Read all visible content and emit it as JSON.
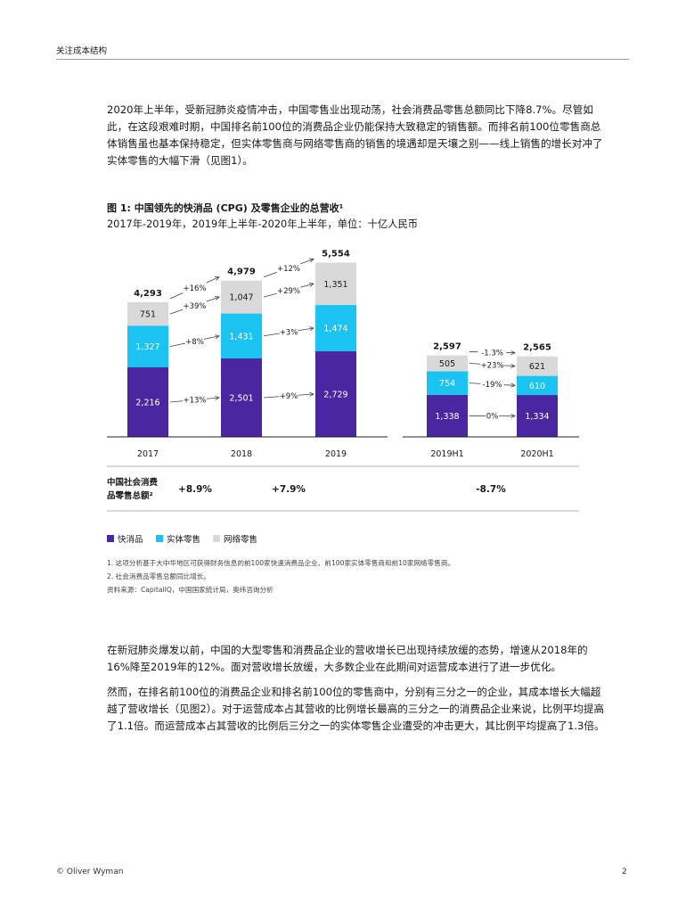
{
  "header": {
    "section": "关注成本结构"
  },
  "paragraphs": {
    "p1": "2020年上半年，受新冠肺炎疫情冲击，中国零售业出现动荡，社会消费品零售总额同比下降8.7%。尽管如此，在这段艰难时期，中国排名前100位的消费品企业仍能保持大致稳定的销售额。而排名前100位零售商总体销售虽也基本保持稳定，但实体零售商与网络零售商的销售的境遇却是天壤之别——线上销售的增长对冲了实体零售的大幅下滑（见图1）。",
    "p2": "在新冠肺炎爆发以前，中国的大型零售和消费品企业的营收增长已出现持续放缓的态势，增速从2018年的16%降至2019年的12%。面对营收增长放缓，大多数企业在此期间对运营成本进行了进一步优化。",
    "p3": "然而，在排名前100位的消费品企业和排名前100位的零售商中，分别有三分之一的企业，其成本增长大幅超越了营收增长（见图2）。对于运营成本占其营收的比例增长最高的三分之一的消费品企业来说，比例平均提高了1.1倍。而运营成本占其营收的比例后三分之一的实体零售企业遭受的冲击更大，其比例平均提高了1.3倍。"
  },
  "figure": {
    "title": "图 1: 中国领先的快消品 (CPG) 及零售企业的总营收¹",
    "subtitle": "2017年-2019年，2019年上半年-2020年上半年，单位：十亿人民币",
    "retail_row_label_1": "中国社会消费",
    "retail_row_label_2": "品零售总额²",
    "retail_growth": [
      "+8.9%",
      "+7.9%",
      "-8.7%"
    ],
    "legend": [
      {
        "label": "快消品",
        "color": "#4a27a0"
      },
      {
        "label": "实体零售",
        "color": "#1bc3f0"
      },
      {
        "label": "网络零售",
        "color": "#d9d9d9"
      }
    ]
  },
  "chart_data": {
    "type": "bar",
    "stacked": true,
    "categories": [
      "2017",
      "2018",
      "2019",
      "2019H1",
      "2020H1"
    ],
    "series": [
      {
        "name": "快消品",
        "values": [
          2216,
          2501,
          2729,
          1338,
          1334
        ],
        "color": "#4a27a0"
      },
      {
        "name": "实体零售",
        "values": [
          1327,
          1431,
          1474,
          754,
          610
        ],
        "color": "#1bc3f0"
      },
      {
        "name": "网络零售",
        "values": [
          751,
          1047,
          1351,
          505,
          621
        ],
        "color": "#d9d9d9"
      }
    ],
    "value_labels": {
      "快消品": [
        "2,216",
        "2,501",
        "2,729",
        "1,338",
        "1,334"
      ],
      "实体零售": [
        "1,327",
        "1,431",
        "1,474",
        "754",
        "610"
      ],
      "网络零售": [
        "751",
        "1,047",
        "1,351",
        "505",
        "621"
      ]
    },
    "totals": [
      "4,293",
      "4,979",
      "5,554",
      "2,597",
      "2,565"
    ],
    "growth_annotations": {
      "totals": [
        "+16%",
        "+12%",
        "-1.3%"
      ],
      "快消品": [
        "+13%",
        "+9%",
        "0%"
      ],
      "实体零售": [
        "+8%",
        "+3%",
        "-19%"
      ],
      "网络零售": [
        "+39%",
        "+29%",
        "+23%"
      ]
    }
  },
  "notes": [
    "1. 这项分析基于大中华地区可获得财务信息的前100家快速消费品企业、前100家实体零售商和前10家网络零售商。",
    "2. 社会消费品零售总额同比增长。",
    "资料来源：CapitalIQ，中国国家统计局，奥纬咨询分析"
  ],
  "footer": {
    "left": "© Oliver Wyman",
    "page": "2"
  }
}
